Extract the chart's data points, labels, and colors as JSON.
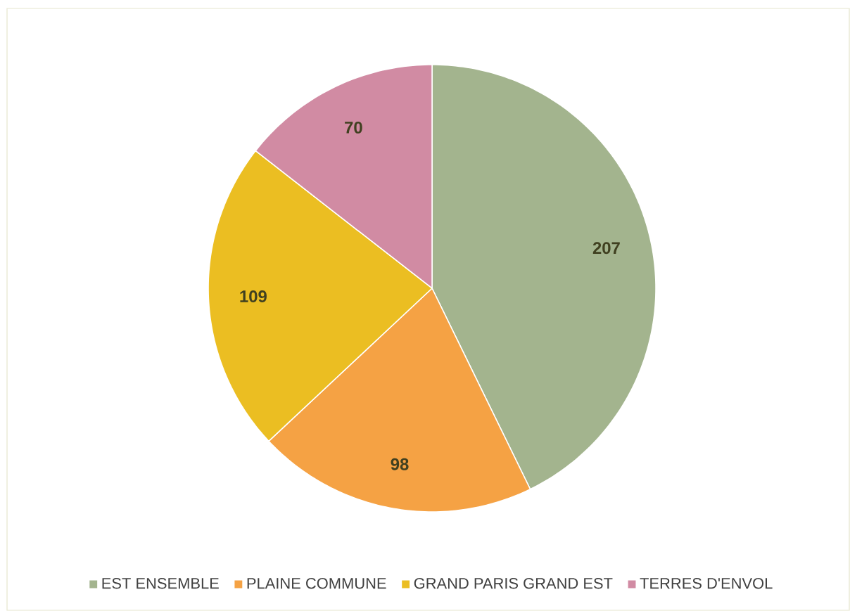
{
  "chart_data": {
    "type": "pie",
    "categories": [
      "EST ENSEMBLE",
      "PLAINE COMMUNE",
      "GRAND PARIS GRAND EST",
      "TERRES D'ENVOL"
    ],
    "values": [
      207,
      98,
      109,
      70
    ],
    "colors": [
      "#a3b48e",
      "#f5a244",
      "#ebbe22",
      "#d18ba3"
    ],
    "data_labels": true,
    "legend": "bottom"
  }
}
